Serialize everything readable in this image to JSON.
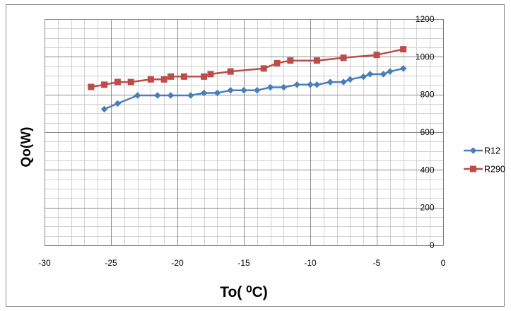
{
  "chart_data": {
    "type": "line",
    "xlabel": "To( ⁰C)",
    "ylabel": "Qo(W)",
    "xlim": [
      -30,
      0
    ],
    "ylim": [
      0,
      1200
    ],
    "x_ticks": [
      -30,
      -25,
      -20,
      -15,
      -10,
      -5,
      0
    ],
    "y_ticks": [
      0,
      200,
      400,
      600,
      800,
      1000,
      1200
    ],
    "x_minor_step": 1,
    "y_minor_step": 50,
    "grid": true,
    "legend_position": "right",
    "series": [
      {
        "name": "R12",
        "color": "#4a7ebb",
        "marker": "diamond",
        "points": [
          [
            -25.5,
            722
          ],
          [
            -24.5,
            752
          ],
          [
            -23,
            795
          ],
          [
            -21.5,
            795
          ],
          [
            -20.5,
            795
          ],
          [
            -19,
            795
          ],
          [
            -18,
            808
          ],
          [
            -17,
            808
          ],
          [
            -16,
            822
          ],
          [
            -15,
            822
          ],
          [
            -14,
            822
          ],
          [
            -13,
            838
          ],
          [
            -12,
            838
          ],
          [
            -11,
            852
          ],
          [
            -10,
            852
          ],
          [
            -9.5,
            852
          ],
          [
            -8.5,
            866
          ],
          [
            -7.5,
            866
          ],
          [
            -7,
            880
          ],
          [
            -6,
            894
          ],
          [
            -5.5,
            908
          ],
          [
            -4.5,
            908
          ],
          [
            -4,
            922
          ],
          [
            -3,
            938
          ]
        ]
      },
      {
        "name": "R290",
        "color": "#be4b48",
        "marker": "square",
        "points": [
          [
            -26.5,
            840
          ],
          [
            -25.5,
            852
          ],
          [
            -24.5,
            866
          ],
          [
            -23.5,
            866
          ],
          [
            -22,
            880
          ],
          [
            -21,
            880
          ],
          [
            -20.5,
            895
          ],
          [
            -19.5,
            895
          ],
          [
            -18,
            895
          ],
          [
            -17.5,
            908
          ],
          [
            -16,
            922
          ],
          [
            -13.5,
            938
          ],
          [
            -12.5,
            966
          ],
          [
            -11.5,
            980
          ],
          [
            -9.5,
            980
          ],
          [
            -7.5,
            995
          ],
          [
            -5,
            1010
          ],
          [
            -3,
            1040
          ]
        ]
      }
    ]
  }
}
